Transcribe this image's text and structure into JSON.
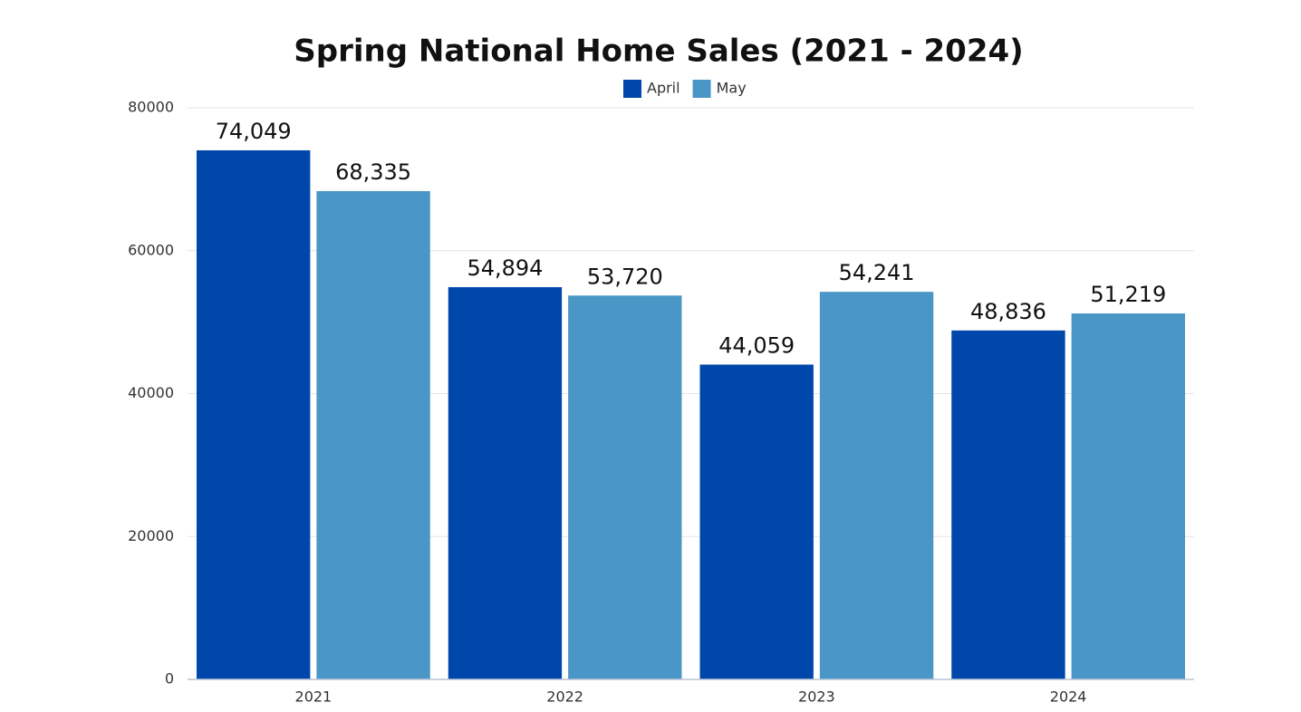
{
  "chart_data": {
    "type": "bar",
    "title": "Spring National Home Sales (2021 - 2024)",
    "categories": [
      "2021",
      "2022",
      "2023",
      "2024"
    ],
    "series": [
      {
        "name": "April",
        "color": "#0047ab",
        "values": [
          74049,
          54894,
          44059,
          48836
        ],
        "value_labels": [
          "74,049",
          "54,894",
          "44,059",
          "48,836"
        ]
      },
      {
        "name": "May",
        "color": "#4a96c6",
        "values": [
          68335,
          53720,
          54241,
          51219
        ],
        "value_labels": [
          "68,335",
          "53,720",
          "54,241",
          "51,219"
        ]
      }
    ],
    "ylim": [
      0,
      80000
    ],
    "yticks": [
      0,
      20000,
      40000,
      60000,
      80000
    ],
    "grid": true,
    "legend": "top"
  }
}
